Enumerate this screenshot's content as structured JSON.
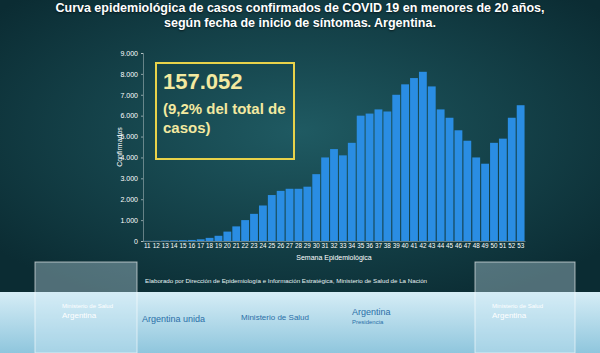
{
  "chart_data": {
    "type": "bar",
    "title": "Curva epidemiológica de casos confirmados de COVID 19 en menores de 20 años, según fecha de inicio de síntomas.  Argentina.",
    "x_label": "Semana Epidemiológica",
    "y_label": "Confirmados",
    "annotations": [
      "157.052",
      "(9,2% del total de casos)"
    ],
    "source": "Elaborado por Dirección de Epidemiología e Información Estratégica, Ministerio de Salud de La Nación",
    "categories": [
      11,
      12,
      13,
      14,
      15,
      16,
      17,
      18,
      19,
      20,
      21,
      22,
      23,
      24,
      25,
      26,
      27,
      28,
      29,
      30,
      31,
      32,
      33,
      34,
      35,
      36,
      37,
      38,
      39,
      40,
      41,
      42,
      43,
      44,
      45,
      46,
      47,
      48,
      49,
      50,
      51,
      52,
      53
    ],
    "values": [
      10,
      10,
      20,
      30,
      40,
      50,
      80,
      150,
      250,
      450,
      700,
      1000,
      1300,
      1700,
      2200,
      2400,
      2500,
      2500,
      2600,
      3200,
      4000,
      4400,
      4100,
      4700,
      6000,
      6100,
      6300,
      6200,
      7000,
      7500,
      7800,
      8100,
      7400,
      6300,
      5900,
      5300,
      4800,
      4000,
      3700,
      4700,
      4900,
      5900,
      6500
    ],
    "color": "#2a8de3",
    "ylim": [
      0,
      9000
    ],
    "yticks": [
      0,
      {
        "value": 1000,
        "label": "1.000"
      },
      {
        "value": 2000,
        "label": "2.000"
      },
      {
        "value": 3000,
        "label": "3.000"
      },
      {
        "value": 4000,
        "label": "4.000"
      },
      {
        "value": 5000,
        "label": "5.000"
      },
      {
        "value": 6000,
        "label": "6.000"
      },
      {
        "value": 7000,
        "label": "7.000"
      },
      {
        "value": 8000,
        "label": "8.000"
      },
      {
        "value": 9000,
        "label": "9.000"
      }
    ],
    "grid": false
  },
  "podium_left": [
    "Ministerio de Salud",
    "Argentina"
  ],
  "podium_right": [
    "Ministerio de Salud",
    "Argentina"
  ],
  "footer": [
    "Argentina unida",
    "Ministerio de Salud",
    "Argentina",
    "Presidencia"
  ]
}
